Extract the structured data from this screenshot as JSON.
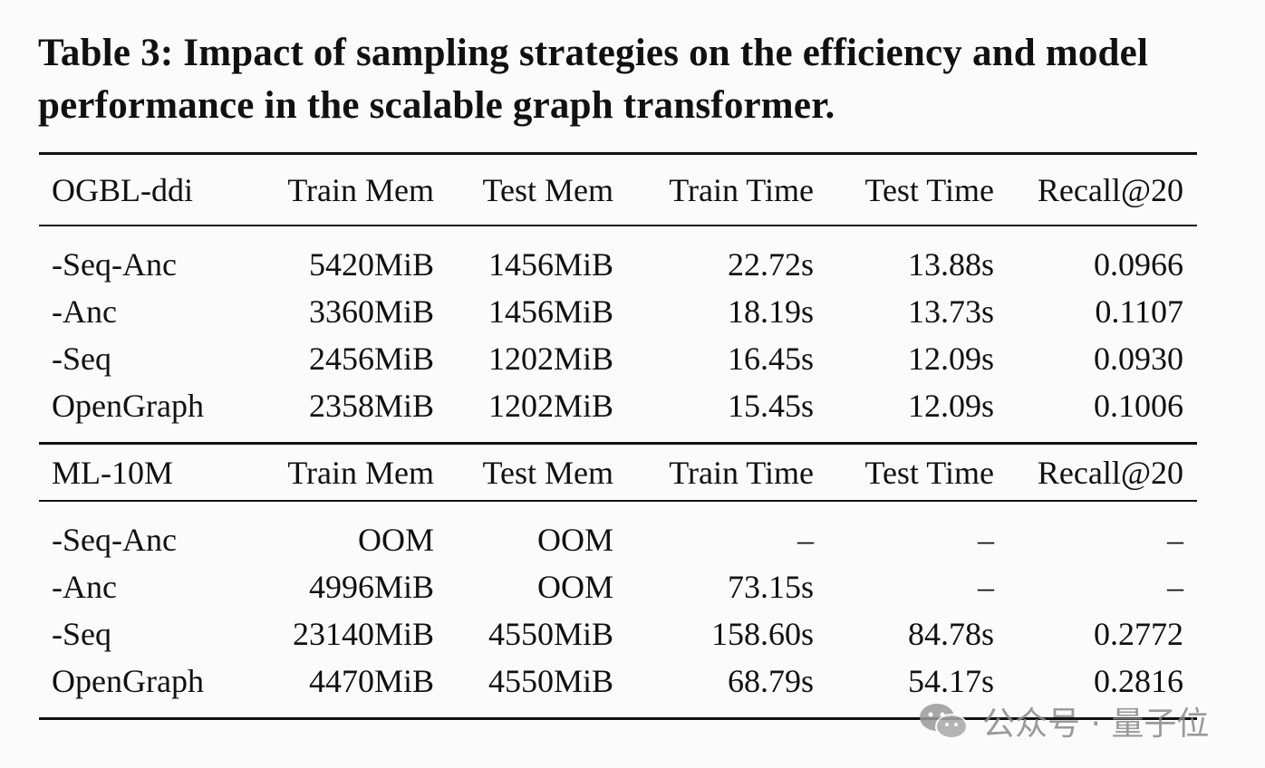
{
  "caption": "Table 3: Impact of sampling strategies on the efficiency and model performance in the scalable graph transformer.",
  "columns": [
    "Train Mem",
    "Test Mem",
    "Train Time",
    "Test Time",
    "Recall@20"
  ],
  "sections": [
    {
      "dataset": "OGBL-ddi",
      "rows": [
        [
          "-Seq-Anc",
          "5420MiB",
          "1456MiB",
          "22.72s",
          "13.88s",
          "0.0966"
        ],
        [
          "-Anc",
          "3360MiB",
          "1456MiB",
          "18.19s",
          "13.73s",
          "0.1107"
        ],
        [
          "-Seq",
          "2456MiB",
          "1202MiB",
          "16.45s",
          "12.09s",
          "0.0930"
        ],
        [
          "OpenGraph",
          "2358MiB",
          "1202MiB",
          "15.45s",
          "12.09s",
          "0.1006"
        ]
      ]
    },
    {
      "dataset": "ML-10M",
      "rows": [
        [
          "-Seq-Anc",
          "OOM",
          "OOM",
          "–",
          "–",
          "–"
        ],
        [
          "-Anc",
          "4996MiB",
          "OOM",
          "73.15s",
          "–",
          "–"
        ],
        [
          "-Seq",
          "23140MiB",
          "4550MiB",
          "158.60s",
          "84.78s",
          "0.2772"
        ],
        [
          "OpenGraph",
          "4470MiB",
          "4550MiB",
          "68.79s",
          "54.17s",
          "0.2816"
        ]
      ]
    }
  ],
  "watermark": "公众号 · 量子位"
}
